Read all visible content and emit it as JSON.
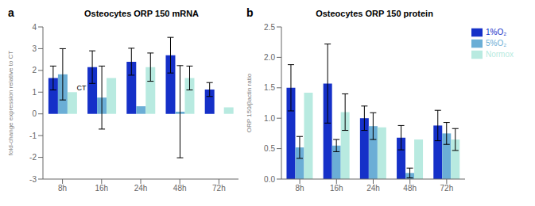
{
  "chart_data": [
    {
      "type": "bar",
      "title": "Osteocytes ORP 150 mRNA",
      "y_label": "fold-change expression relative to CT",
      "categories": [
        "8h",
        "16h",
        "24h",
        "48h",
        "72h"
      ],
      "series": [
        {
          "name": "1%O₂",
          "color": "#1530c8",
          "values": [
            1.65,
            2.15,
            2.4,
            2.7,
            1.12
          ],
          "errors": [
            0.55,
            0.75,
            0.62,
            0.82,
            0.32
          ]
        },
        {
          "name": "5%O₂",
          "color": "#6baed6",
          "values": [
            1.82,
            0.75,
            0.35,
            0.1,
            0.0
          ],
          "errors": [
            1.18,
            1.45,
            0.0,
            2.12,
            0.0
          ]
        },
        {
          "name": "Normox",
          "color": "#b8eae0",
          "values": [
            1.0,
            1.65,
            2.15,
            1.65,
            0.3
          ],
          "errors": [
            0.0,
            0.0,
            0.65,
            0.55,
            0.0
          ]
        }
      ],
      "ylim": [
        -3,
        4
      ],
      "yticks": [
        -3,
        -2,
        -1,
        0,
        1,
        2,
        3,
        4
      ],
      "grid": false,
      "annotations": [
        {
          "text": "a"
        },
        {
          "text": "CT",
          "x": "8h",
          "y": 1.02
        }
      ]
    },
    {
      "type": "bar",
      "title": "Osteocytes ORP 150 protein",
      "y_label": "ORP 150/βactin ratio",
      "categories": [
        "8h",
        "16h",
        "24h",
        "48h",
        "72h"
      ],
      "series": [
        {
          "name": "1%O₂",
          "color": "#1530c8",
          "values": [
            1.5,
            1.57,
            1.0,
            0.68,
            0.88
          ],
          "errors": [
            0.38,
            0.65,
            0.2,
            0.2,
            0.25
          ]
        },
        {
          "name": "5%O₂",
          "color": "#6baed6",
          "values": [
            0.52,
            0.55,
            0.87,
            0.1,
            0.75
          ],
          "errors": [
            0.18,
            0.1,
            0.22,
            0.08,
            0.18
          ]
        },
        {
          "name": "Normox",
          "color": "#b8eae0",
          "values": [
            1.42,
            1.1,
            0.85,
            0.65,
            0.65
          ],
          "errors": [
            0.0,
            0.3,
            0.0,
            0.0,
            0.18
          ]
        }
      ],
      "ylim": [
        0,
        2.5
      ],
      "yticks": [
        {
          "value": 0,
          "label": "0.0"
        },
        0.5,
        {
          "value": 1,
          "label": "1.0"
        },
        1.5,
        {
          "value": 2,
          "label": "2.0"
        },
        2.5
      ],
      "grid": false,
      "legend": "right",
      "annotations": [
        {
          "text": "b"
        }
      ]
    }
  ]
}
